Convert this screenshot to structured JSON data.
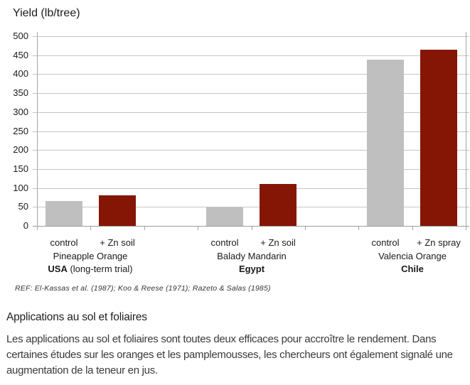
{
  "reference": "REF: El-Kassas et al. (1987); Koo & Reese (1971); Razeto & Salas (1985)",
  "chart_data": {
    "type": "bar",
    "title": "Yield (lb/tree)",
    "xlabel": "",
    "ylabel": "Yield (lb/tree)",
    "ylim": [
      0,
      500
    ],
    "ytick_step": 50,
    "grid": true,
    "legend": "none",
    "bar_colors": {
      "control": "#bfbfbf",
      "zinc": "#851605"
    },
    "groups": [
      {
        "variety": "Pineapple Orange",
        "country": "USA",
        "country_note": " (long-term trial)",
        "bars": [
          {
            "label": "control",
            "role": "control",
            "value": 65
          },
          {
            "label": "+ Zn soil",
            "role": "zinc",
            "value": 80
          }
        ]
      },
      {
        "variety": "Balady Mandarin",
        "country": "Egypt",
        "country_note": "",
        "bars": [
          {
            "label": "control",
            "role": "control",
            "value": 48
          },
          {
            "label": "+ Zn soil",
            "role": "zinc",
            "value": 110
          }
        ]
      },
      {
        "variety": "Valencia Orange",
        "country": "Chile",
        "country_note": "",
        "bars": [
          {
            "label": "control",
            "role": "control",
            "value": 438
          },
          {
            "label": "+ Zn spray",
            "role": "zinc",
            "value": 464
          }
        ]
      }
    ]
  },
  "section": {
    "heading": "Applications au sol et foliaires",
    "body": "Les applications au sol et foliaires sont toutes deux efficaces pour accroître le rendement. Dans certaines études sur les oranges et les pamplemousses, les chercheurs ont également signalé une augmentation de la teneur en jus."
  }
}
